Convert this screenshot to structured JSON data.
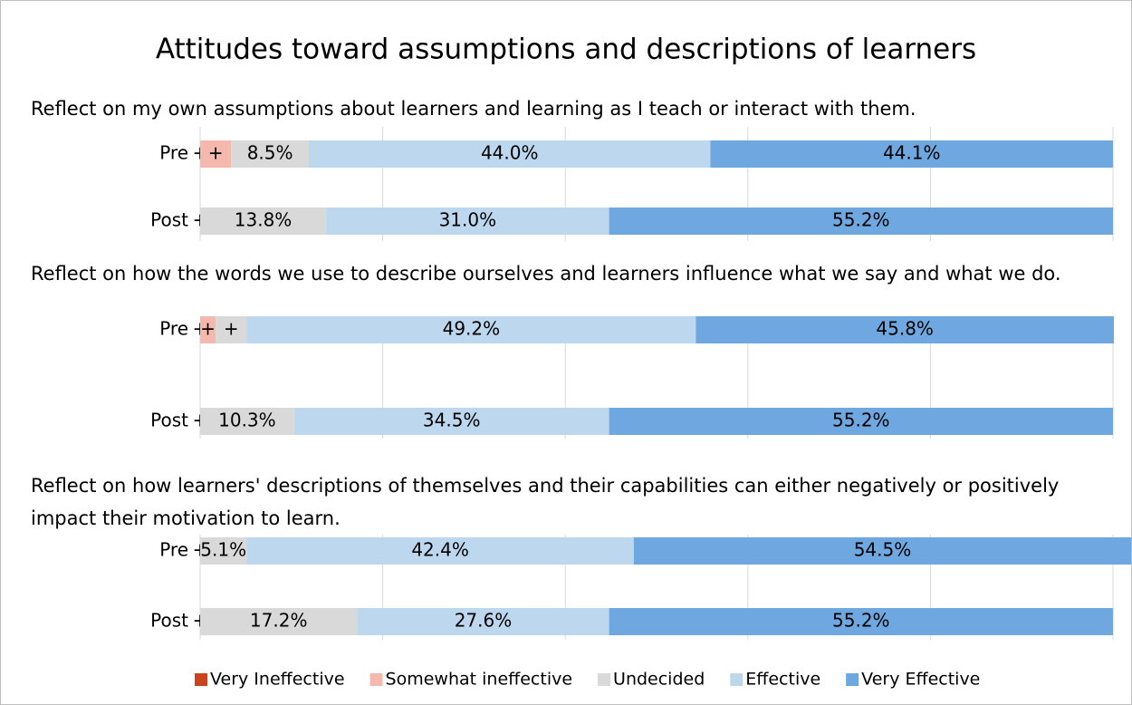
{
  "chart_data": {
    "type": "stacked-bar",
    "title": "Attitudes toward assumptions and descriptions of learners",
    "xlim": [
      0,
      100
    ],
    "xticks": [
      0,
      20,
      40,
      60,
      80,
      100
    ],
    "grid": true,
    "series": [
      {
        "name": "Very Ineffective",
        "color": "#c9431e"
      },
      {
        "name": "Somewhat ineffective",
        "color": "#f4b9ac"
      },
      {
        "name": "Undecided",
        "color": "#d9d9d9"
      },
      {
        "name": "Effective",
        "color": "#bdd7ee"
      },
      {
        "name": "Very Effective",
        "color": "#6fa8e0"
      }
    ],
    "panels": [
      {
        "subtitle": "Reflect on my own assumptions about learners and learning as I teach or interact with them.",
        "categories": [
          "Pre",
          "Post"
        ],
        "series": [
          {
            "values": [
              0,
              0
            ],
            "value_labels": [
              "+",
              null
            ]
          },
          {
            "values": [
              3.4,
              0
            ],
            "value_labels": [
              "+",
              "+"
            ]
          },
          {
            "values": [
              8.5,
              13.8
            ],
            "value_labels": [
              "8.5%",
              "13.8%"
            ]
          },
          {
            "values": [
              44.0,
              31.0
            ],
            "value_labels": [
              "44.0%",
              "31.0%"
            ]
          },
          {
            "values": [
              44.1,
              55.2
            ],
            "value_labels": [
              "44.1%",
              "55.2%"
            ]
          }
        ]
      },
      {
        "subtitle": "Reflect on how the words we use to describe ourselves and learners influence what we say and what we do.",
        "categories": [
          "Pre",
          "Post"
        ],
        "series": [
          {
            "values": [
              0,
              0
            ],
            "value_labels": [
              "+",
              null
            ]
          },
          {
            "values": [
              1.7,
              0
            ],
            "value_labels": [
              "+",
              "+"
            ]
          },
          {
            "values": [
              3.4,
              10.3
            ],
            "value_labels": [
              "+",
              "10.3%"
            ]
          },
          {
            "values": [
              49.2,
              34.5
            ],
            "value_labels": [
              "49.2%",
              "34.5%"
            ]
          },
          {
            "values": [
              45.8,
              55.2
            ],
            "value_labels": [
              "45.8%",
              "55.2%"
            ]
          }
        ]
      },
      {
        "subtitle": "Reflect on how learners' descriptions of themselves and their capabilities can either negatively or positively impact their motivation to learn.",
        "categories": [
          "Pre",
          "Post"
        ],
        "series": [
          {
            "values": [
              0,
              0
            ],
            "value_labels": [
              null,
              null
            ]
          },
          {
            "values": [
              0,
              0
            ],
            "value_labels": [
              "+",
              "+"
            ]
          },
          {
            "values": [
              5.1,
              17.2
            ],
            "value_labels": [
              "5.1%",
              "17.2%"
            ]
          },
          {
            "values": [
              42.4,
              27.6
            ],
            "value_labels": [
              "42.4%",
              "27.6%"
            ]
          },
          {
            "values": [
              54.5,
              55.2
            ],
            "value_labels": [
              "54.5%",
              "55.2%"
            ]
          }
        ]
      }
    ]
  }
}
